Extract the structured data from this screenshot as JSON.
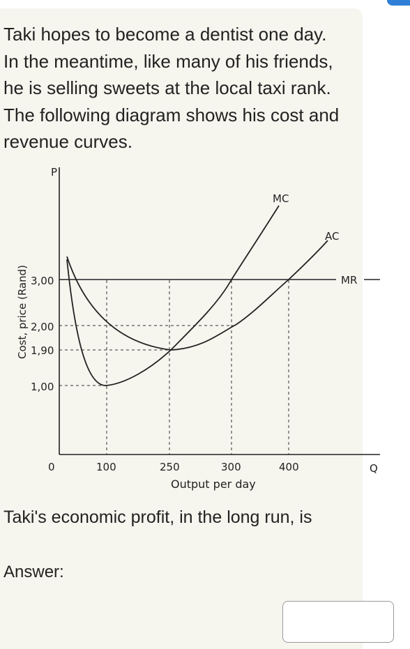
{
  "question": {
    "lines": [
      "Taki hopes to become a dentist one day.",
      "In the meantime, like many of his friends,",
      "he is selling sweets at the local taxi rank.",
      "The following diagram shows his cost and",
      "revenue curves."
    ]
  },
  "chart_data": {
    "type": "line",
    "ylabel": "Cost, price (Rand)",
    "xlabel": "Output per day",
    "y_axis_letter": "P",
    "x_axis_letter": "Q",
    "x_ticks": [
      "100",
      "250",
      "300",
      "400"
    ],
    "y_ticks": [
      "3,00",
      "2,00",
      "1,90",
      "1,00"
    ],
    "origin_label": "0",
    "series": [
      {
        "name": "MC",
        "x": [
          0,
          40,
          100,
          160,
          250,
          300,
          340,
          400
        ],
        "y": [
          3.3,
          2.2,
          1.0,
          1.3,
          1.9,
          3.0,
          3.8,
          4.5
        ]
      },
      {
        "name": "AC",
        "x": [
          0,
          50,
          100,
          250,
          300,
          350,
          400,
          450
        ],
        "y": [
          3.3,
          2.6,
          2.2,
          1.9,
          2.0,
          2.3,
          3.0,
          3.6
        ]
      },
      {
        "name": "MR",
        "x": [
          0,
          450
        ],
        "y": [
          3.0,
          3.0
        ]
      }
    ],
    "annotations": [
      "MC",
      "AC",
      "MR"
    ]
  },
  "profit_question": "Taki's economic profit, in the long run, is",
  "answer": {
    "label": "Answer:",
    "value": ""
  }
}
